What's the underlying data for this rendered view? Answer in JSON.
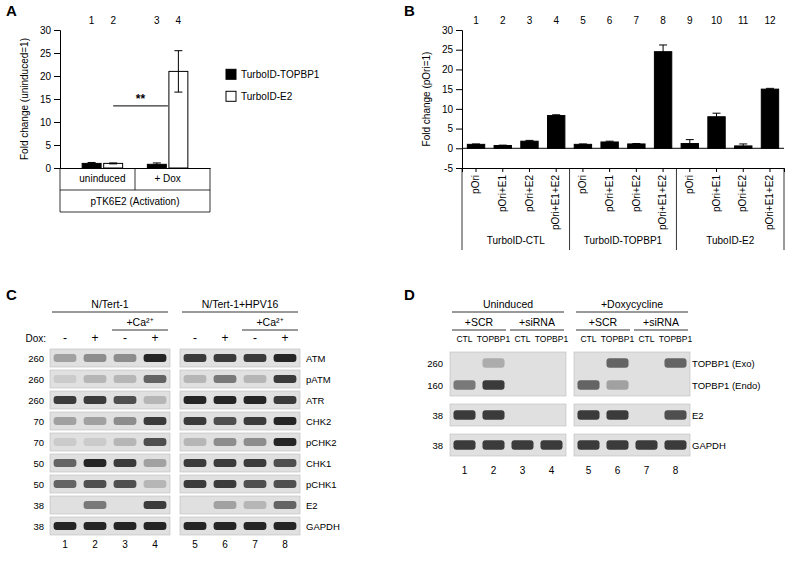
{
  "chart_data": [
    {
      "type": "bar",
      "panel_label": "A",
      "y_label": "Fold change (uninduced=1)",
      "categories": [
        "uninduced",
        "+ Dox"
      ],
      "group_label": "pTK6E2 (Activation)",
      "bar_numbers": [
        "1",
        "2",
        "3",
        "4"
      ],
      "series": [
        {
          "name": "TurboID-TOPBP1",
          "color": "#000000",
          "values": [
            1,
            0.8
          ],
          "errors": [
            0.2,
            0.3
          ]
        },
        {
          "name": "TurboID-E2",
          "color": "#ffffff",
          "values": [
            1,
            21
          ],
          "errors": [
            0.1,
            4.5
          ]
        }
      ],
      "ylim": [
        0,
        30
      ],
      "yticks": [
        0,
        5,
        10,
        15,
        20,
        25,
        30
      ],
      "legend": "right",
      "significance": {
        "text": "**",
        "between": [
          "2",
          "4"
        ]
      }
    },
    {
      "type": "bar",
      "panel_label": "B",
      "y_label": "Fold change (pOri=1)",
      "categories": [
        "pOri",
        "pOri+E1",
        "pOri+E2",
        "pOri+E1+E2",
        "pOri",
        "pOri+E1",
        "pOri+E2",
        "pOri+E1+E2",
        "pOri",
        "pOri+E1",
        "pOri+E2",
        "pOri+E1+E2"
      ],
      "groups": [
        "TurboID-CTL",
        "TurboID-TOPBP1",
        "TuboID-E2"
      ],
      "bar_numbers": [
        "1",
        "2",
        "3",
        "4",
        "5",
        "6",
        "7",
        "8",
        "9",
        "10",
        "11",
        "12"
      ],
      "values": [
        1,
        0.7,
        1.8,
        8.3,
        1,
        1.6,
        1.1,
        24.5,
        1.2,
        8,
        0.6,
        15
      ],
      "errors": [
        0.1,
        0.1,
        0.2,
        0.2,
        0.1,
        0.2,
        0.1,
        1.7,
        1,
        0.9,
        0.5,
        0.2
      ],
      "color": "#000000",
      "ylim": [
        -5,
        30
      ],
      "yticks": [
        -5,
        0,
        5,
        10,
        15,
        20,
        25,
        30
      ]
    }
  ],
  "blots": [
    {
      "panel_label": "C",
      "headers": [
        {
          "text": "N/Tert-1",
          "lanes": [
            "1",
            "4"
          ]
        },
        {
          "text": "N/Tert-1+HPV16",
          "lanes": [
            "5",
            "8"
          ]
        }
      ],
      "subheaders": [
        {
          "text": "+Ca²⁺",
          "lanes": [
            "3",
            "4"
          ]
        },
        {
          "text": "+Ca²⁺",
          "lanes": [
            "7",
            "8"
          ]
        }
      ],
      "row_title": "Dox:",
      "lane_marks": [
        "-",
        "+",
        "-",
        "+",
        "-",
        "+",
        "-",
        "+"
      ],
      "lane_numbers": [
        "1",
        "2",
        "3",
        "4",
        "5",
        "6",
        "7",
        "8"
      ],
      "strips": [
        {
          "rows": [
            {
              "marker": 260,
              "label": "ATM",
              "intensity": [
                0.3,
                0.4,
                0.4,
                0.9,
                0.8,
                0.8,
                0.8,
                0.9
              ]
            }
          ]
        },
        {
          "rows": [
            {
              "marker": 260,
              "label": "pATM",
              "intensity": [
                0.1,
                0.2,
                0.2,
                0.6,
                0.2,
                0.5,
                0.2,
                0.8
              ]
            }
          ]
        },
        {
          "rows": [
            {
              "marker": 260,
              "label": "ATR",
              "intensity": [
                0.8,
                0.8,
                0.7,
                0.2,
                0.9,
                0.9,
                0.9,
                0.8
              ]
            }
          ]
        },
        {
          "rows": [
            {
              "marker": 70,
              "label": "CHK2",
              "intensity": [
                0.3,
                0.3,
                0.4,
                0.8,
                0.8,
                0.7,
                0.8,
                0.9
              ]
            }
          ]
        },
        {
          "rows": [
            {
              "marker": 70,
              "label": "pCHK2",
              "intensity": [
                0.1,
                0.1,
                0.2,
                0.7,
                0.2,
                0.4,
                0.4,
                0.9
              ]
            }
          ]
        },
        {
          "rows": [
            {
              "marker": 50,
              "label": "CHK1",
              "intensity": [
                0.6,
                0.9,
                0.8,
                0.3,
                0.8,
                0.8,
                0.8,
                0.7
              ]
            }
          ]
        },
        {
          "rows": [
            {
              "marker": 50,
              "label": "pCHK1",
              "intensity": [
                0.6,
                0.7,
                0.7,
                0.2,
                0.8,
                0.8,
                0.7,
                0.7
              ]
            }
          ]
        },
        {
          "rows": [
            {
              "marker": 38,
              "label": "E2",
              "intensity": [
                0,
                0.5,
                0,
                0.8,
                0,
                0.3,
                0.2,
                0.6
              ]
            }
          ]
        },
        {
          "rows": [
            {
              "marker": 38,
              "label": "GAPDH",
              "intensity": [
                0.9,
                0.9,
                0.9,
                0.9,
                0.9,
                0.9,
                0.9,
                0.9
              ]
            }
          ]
        }
      ]
    },
    {
      "panel_label": "D",
      "headers": [
        {
          "text": "Uninduced",
          "lanes": [
            "1",
            "4"
          ]
        },
        {
          "text": "+Doxycycline",
          "lanes": [
            "5",
            "8"
          ]
        }
      ],
      "subheaders": [
        {
          "text": "+SCR",
          "lanes": [
            "1",
            "2"
          ]
        },
        {
          "text": "+siRNA",
          "lanes": [
            "3",
            "4"
          ]
        },
        {
          "text": "+SCR",
          "lanes": [
            "5",
            "6"
          ]
        },
        {
          "text": "+siRNA",
          "lanes": [
            "7",
            "8"
          ]
        }
      ],
      "lane_labels": [
        "CTL",
        "TOPBP1",
        "CTL",
        "TOPBP1",
        "CTL",
        "TOPBP1",
        "CTL",
        "TOPBP1"
      ],
      "lane_numbers": [
        "1",
        "2",
        "3",
        "4",
        "5",
        "6",
        "7",
        "8"
      ],
      "strips": [
        {
          "rows": [
            {
              "marker": 260,
              "label": "TOPBP1 (Exo)",
              "intensity": [
                0,
                0.25,
                0,
                0,
                0,
                0.6,
                0,
                0.6
              ]
            },
            {
              "marker": 160,
              "label": "TOPBP1 (Endo)",
              "intensity": [
                0.5,
                0.8,
                0,
                0,
                0.6,
                0.3,
                0,
                0
              ]
            }
          ]
        },
        {
          "rows": [
            {
              "marker": 38,
              "label": "E2",
              "intensity": [
                0.8,
                0.8,
                0,
                0,
                0.8,
                0.8,
                0,
                0.7
              ]
            }
          ]
        },
        {
          "rows": [
            {
              "marker": 38,
              "label": "GAPDH",
              "intensity": [
                0.8,
                0.8,
                0.8,
                0.8,
                0.8,
                0.8,
                0.8,
                0.8
              ]
            }
          ]
        }
      ]
    }
  ]
}
